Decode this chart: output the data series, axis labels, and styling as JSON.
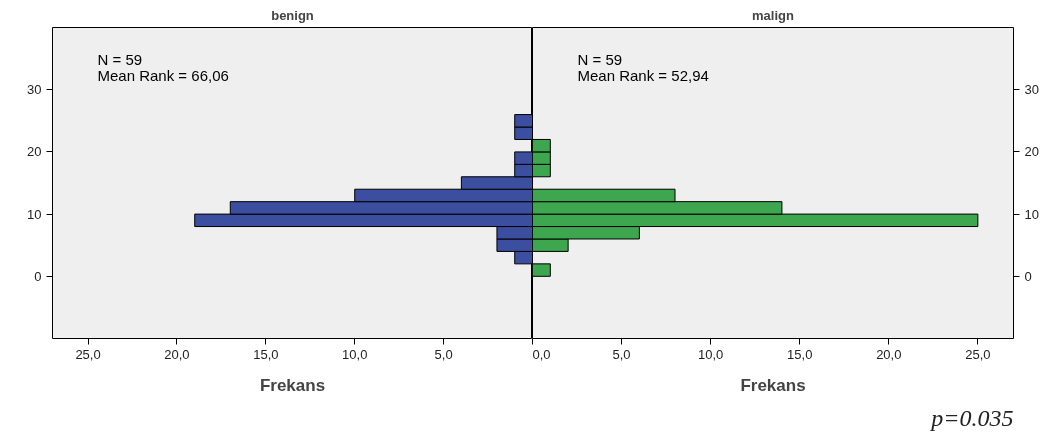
{
  "chart_data": [
    {
      "type": "histogram",
      "orientation": "horizontal",
      "title": "benign",
      "xlabel": "Frekans",
      "color": "#3b4ea0",
      "bins": [
        0,
        2,
        4,
        6,
        8,
        10,
        12,
        14,
        16,
        18,
        20,
        22,
        24,
        26
      ],
      "values": [
        null,
        1,
        2,
        2,
        19,
        17,
        10,
        4,
        1,
        1,
        null,
        1,
        1
      ],
      "xlim": [
        27,
        0
      ],
      "xticks": [
        {
          "value": 25,
          "label": "25,0"
        },
        {
          "value": 20,
          "label": "20,0"
        },
        {
          "value": 15,
          "label": "15,0"
        },
        {
          "value": 10,
          "label": "10,0"
        },
        {
          "value": 5,
          "label": "5,0"
        },
        {
          "value": 0,
          "label": null
        }
      ],
      "ylim": [
        -10,
        40
      ],
      "yticks": [
        0,
        10,
        20,
        30
      ],
      "grid": false,
      "annotations": [
        "N = 59",
        "Mean Rank = 66,06"
      ]
    },
    {
      "type": "histogram",
      "orientation": "horizontal",
      "title": "malign",
      "xlabel": "Frekans",
      "color": "#3ea64e",
      "bins": [
        0,
        2,
        4,
        6,
        8,
        10,
        12,
        14,
        16,
        18,
        20,
        22,
        24,
        26
      ],
      "values": [
        1,
        null,
        2,
        6,
        25,
        14,
        8,
        null,
        1,
        1,
        1,
        null,
        null
      ],
      "xlim": [
        0,
        27
      ],
      "xticks": [
        {
          "value": 0,
          "label": "0,0"
        },
        {
          "value": 5,
          "label": "5,0"
        },
        {
          "value": 10,
          "label": "10,0"
        },
        {
          "value": 15,
          "label": "15,0"
        },
        {
          "value": 20,
          "label": "20,0"
        },
        {
          "value": 25,
          "label": "25,0"
        }
      ],
      "ylim": [
        -10,
        40
      ],
      "yticks": [
        0,
        10,
        20,
        30
      ],
      "grid": false,
      "annotations": [
        "N = 59",
        "Mean Rank = 52,94"
      ]
    },
    {
      "type": "other",
      "annotations": [
        "p=0.035"
      ]
    }
  ]
}
